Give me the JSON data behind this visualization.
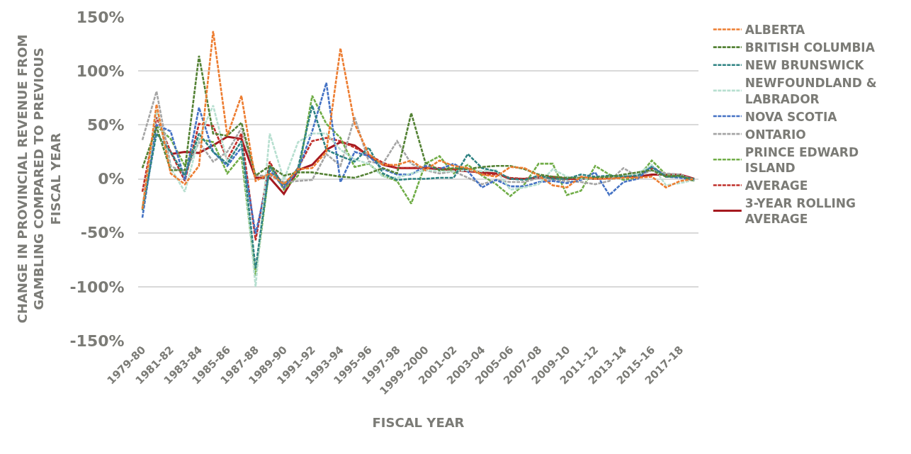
{
  "chart_data": {
    "type": "line",
    "xlabel": "FISCAL YEAR",
    "ylabel": "CHANGE IN PROVINCIAL REVENUE FROM GAMBLING COMPARED TO PREVIOUS FISCAL YEAR",
    "categories": [
      "1979-80",
      null,
      "1981-82",
      null,
      "1983-84",
      null,
      "1985-86",
      null,
      "1987-88",
      null,
      "1989-90",
      null,
      "1991-92",
      null,
      "1993-94",
      null,
      "1995-96",
      null,
      "1997-98",
      null,
      "1999-2000",
      null,
      "2001-02",
      null,
      "2003-04",
      null,
      "2005-06",
      null,
      "2007-08",
      null,
      "2009-10",
      null,
      "2011-12",
      null,
      "2013-14",
      null,
      "2015-16",
      null,
      "2017-18",
      null
    ],
    "ylim": [
      -150,
      150
    ],
    "yticks": [
      {
        "value": -150,
        "label": "-150%"
      },
      {
        "value": -100,
        "label": "-100%"
      },
      {
        "value": -50,
        "label": "-50%"
      },
      {
        "value": 0,
        "label": "0%"
      },
      {
        "value": 50,
        "label": "50%"
      },
      {
        "value": 100,
        "label": "100%"
      },
      {
        "value": 150,
        "label": "150%"
      }
    ],
    "grid": "y",
    "legend": "right",
    "marker": "none",
    "series": [
      {
        "name": "ALBERTA",
        "color": "#ed7d31",
        "line_style": "dashed",
        "values": [
          -28,
          69,
          5,
          -5,
          12,
          137,
          40,
          77,
          -2,
          5,
          -5,
          9,
          10,
          25,
          121,
          51,
          23,
          13,
          13,
          17,
          8,
          17,
          12,
          10,
          4,
          2,
          11,
          10,
          3,
          -6,
          -8,
          2,
          0,
          0,
          1,
          1,
          2,
          -8,
          -2,
          0
        ]
      },
      {
        "name": "BRITISH COLUMBIA",
        "color": "#548235",
        "line_style": "dashed",
        "values": [
          10,
          48,
          8,
          8,
          114,
          42,
          40,
          52,
          3,
          12,
          3,
          6,
          6,
          4,
          2,
          1,
          5,
          10,
          5,
          61,
          15,
          8,
          10,
          9,
          11,
          12,
          12,
          9,
          4,
          2,
          1,
          1,
          1,
          2,
          4,
          6,
          8,
          2,
          3,
          -2
        ]
      },
      {
        "name": "NEW BRUNSWICK",
        "color": "#2f8383",
        "line_style": "dashed",
        "values": [
          -29,
          42,
          25,
          3,
          42,
          25,
          14,
          35,
          -83,
          12,
          -6,
          10,
          68,
          27,
          21,
          16,
          29,
          5,
          -1,
          0,
          0,
          1,
          1,
          23,
          10,
          7,
          0,
          -1,
          3,
          0,
          0,
          4,
          2,
          3,
          2,
          3,
          11,
          2,
          2,
          0
        ]
      },
      {
        "name": "NEWFOUNDLAND & LABRADOR",
        "color": "#b7dfd0",
        "line_style": "dashed",
        "values": [
          -27,
          64,
          10,
          -12,
          38,
          68,
          16,
          34,
          -100,
          42,
          -1,
          34,
          42,
          42,
          27,
          18,
          14,
          2,
          1,
          5,
          8,
          7,
          7,
          8,
          7,
          8,
          -10,
          -8,
          -5,
          9,
          2,
          0,
          0,
          2,
          3,
          5,
          13,
          -6,
          -4,
          -1
        ]
      },
      {
        "name": "NOVA SCOTIA",
        "color": "#4472c4",
        "line_style": "dashed",
        "values": [
          -36,
          50,
          44,
          -1,
          66,
          25,
          12,
          29,
          -51,
          8,
          -8,
          8,
          44,
          89,
          -3,
          25,
          21,
          9,
          4,
          4,
          12,
          9,
          14,
          7,
          -8,
          -1,
          -7,
          -7,
          -3,
          -2,
          -4,
          -1,
          6,
          -15,
          -3,
          0,
          12,
          2,
          1,
          -1
        ]
      },
      {
        "name": "ONTARIO",
        "color": "#a5a5a5",
        "line_style": "dashed",
        "values": [
          36,
          81,
          12,
          5,
          34,
          16,
          25,
          47,
          3,
          3,
          -3,
          -2,
          -1,
          23,
          12,
          57,
          16,
          14,
          35,
          14,
          8,
          5,
          7,
          1,
          -5,
          -1,
          -3,
          -3,
          1,
          -1,
          -2,
          -3,
          -5,
          -2,
          10,
          2,
          8,
          5,
          4,
          -1
        ]
      },
      {
        "name": "PRINCE EDWARD ISLAND",
        "color": "#70ad47",
        "line_style": "dashed",
        "values": [
          -27,
          49,
          37,
          12,
          37,
          34,
          5,
          21,
          -90,
          12,
          -10,
          3,
          77,
          51,
          38,
          11,
          14,
          3,
          -2,
          -23,
          14,
          21,
          5,
          13,
          3,
          -5,
          -16,
          -5,
          14,
          14,
          -15,
          -11,
          12,
          4,
          -1,
          1,
          17,
          4,
          3,
          -2
        ]
      },
      {
        "name": "AVERAGE",
        "color": "#c0302b",
        "line_style": "dashed",
        "values": [
          -12,
          57,
          25,
          -2,
          51,
          49,
          18,
          42,
          -57,
          16,
          -9,
          10,
          35,
          38,
          35,
          29,
          22,
          15,
          10,
          10,
          11,
          10,
          9,
          9,
          4,
          4,
          1,
          0,
          2,
          2,
          0,
          1,
          1,
          1,
          2,
          2,
          10,
          4,
          3,
          0
        ]
      },
      {
        "name": "3-YEAR ROLLING AVERAGE",
        "color": "#a5191f",
        "line_style": "solid",
        "values": [
          null,
          null,
          23,
          25,
          24,
          31,
          39,
          37,
          1,
          1,
          -14,
          8,
          13,
          27,
          34,
          31,
          21,
          13,
          10,
          10,
          10,
          9,
          8,
          7,
          6,
          5,
          0,
          0,
          1,
          1,
          0,
          0,
          0,
          1,
          2,
          2,
          4,
          4,
          4,
          0
        ]
      }
    ]
  }
}
